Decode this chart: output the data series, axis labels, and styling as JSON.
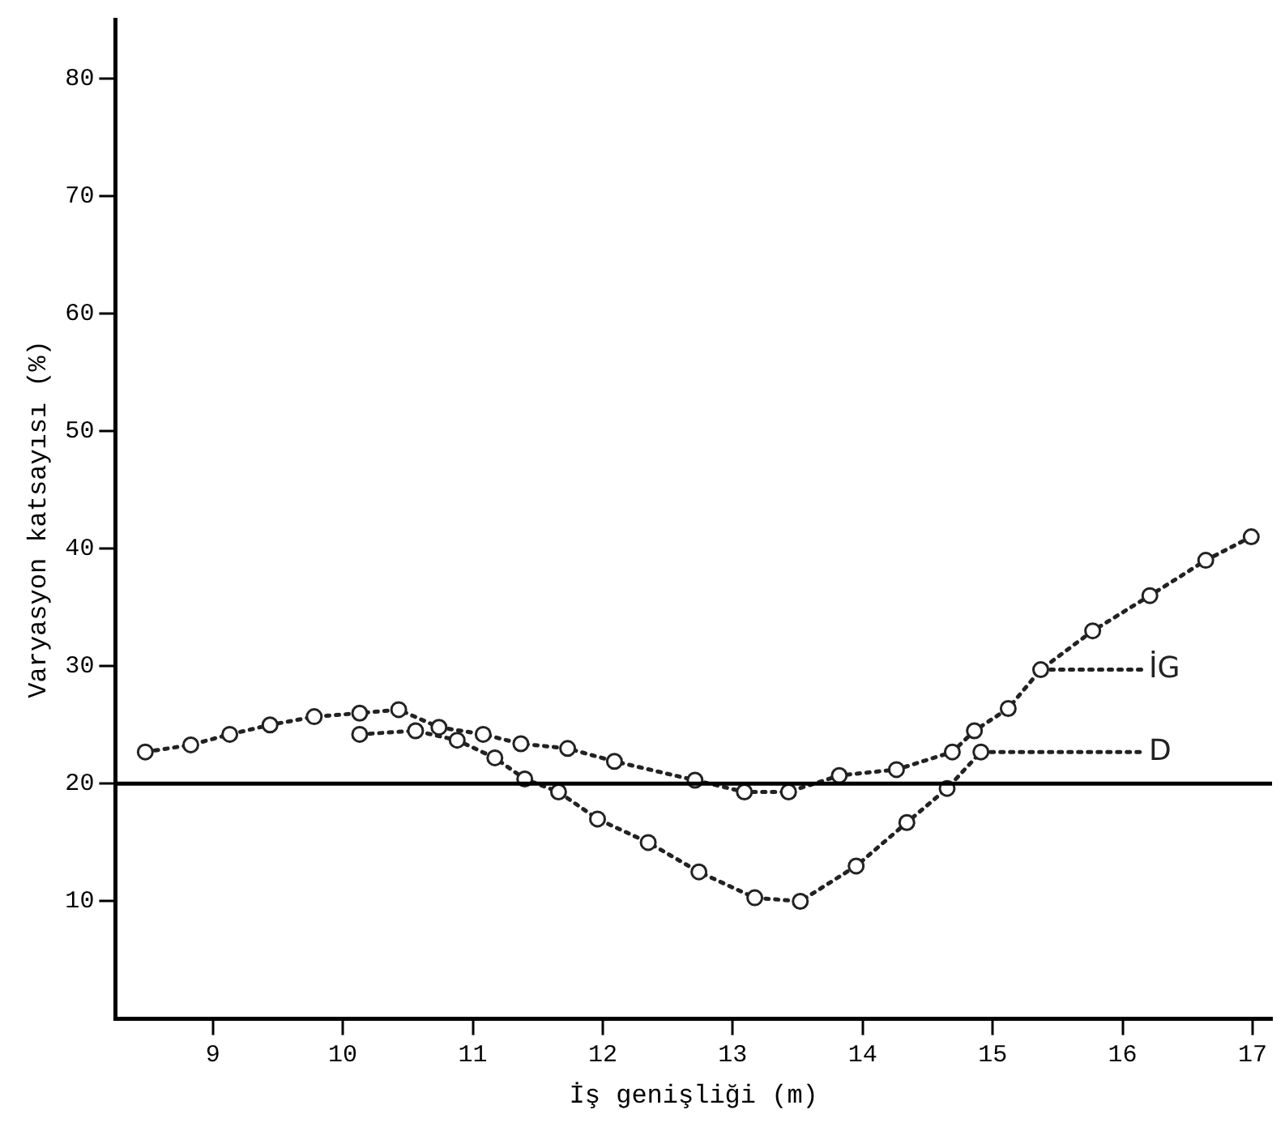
{
  "chart_data": {
    "type": "line",
    "xlabel": "İş genişliği (m)",
    "ylabel": "Varyasyon katsayısı (%)",
    "xlim": [
      8.25,
      17.15
    ],
    "xticks": [
      9,
      10,
      11,
      12,
      13,
      14,
      15,
      16,
      17
    ],
    "ylim": [
      0,
      85
    ],
    "yticks": [
      10,
      20,
      30,
      40,
      50,
      60,
      70,
      80
    ],
    "grid": false,
    "legend": "right",
    "marker": "circle",
    "line_style": "dotted",
    "ref_lines": [
      {
        "axis": "y",
        "value": 20,
        "color": "#000000"
      }
    ],
    "series": [
      {
        "name": "İG",
        "color": "#222222",
        "x": [
          8.48,
          8.83,
          9.13,
          9.44,
          9.78,
          10.13,
          10.43,
          10.74,
          11.08,
          11.37,
          11.73,
          12.09,
          12.71,
          13.09,
          13.43,
          13.82,
          14.26,
          14.69,
          14.86,
          15.12,
          15.37,
          15.77,
          16.21,
          16.64,
          16.99
        ],
        "values": [
          22.7,
          23.3,
          24.2,
          25,
          25.7,
          26,
          26.3,
          24.8,
          24.2,
          23.4,
          23,
          21.9,
          20.3,
          19.3,
          19.3,
          20.7,
          21.2,
          22.7,
          24.5,
          26.4,
          29.7,
          33,
          36,
          39,
          41
        ]
      },
      {
        "name": "D",
        "color": "#222222",
        "x": [
          10.13,
          10.56,
          10.88,
          11.17,
          11.4,
          11.66,
          11.96,
          12.35,
          12.74,
          13.17,
          13.52,
          13.95,
          14.34,
          14.65,
          14.91
        ],
        "values": [
          24.2,
          24.5,
          23.7,
          22.2,
          20.4,
          19.3,
          17,
          15,
          12.5,
          10.3,
          10,
          13,
          16.7,
          19.6,
          22.7
        ]
      }
    ]
  }
}
